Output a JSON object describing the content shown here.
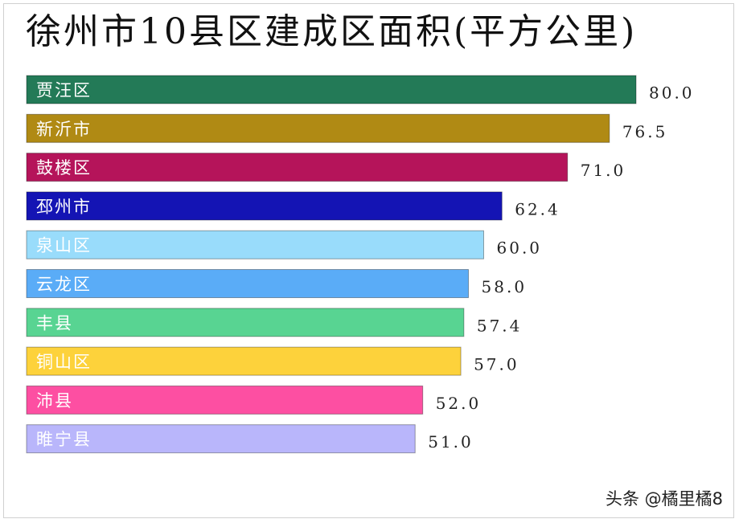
{
  "title": "徐州市10县区建成区面积(平方公里)",
  "watermark": "头条 @橘里橘8",
  "chart_data": {
    "type": "bar",
    "orientation": "horizontal",
    "title": "徐州市10县区建成区面积(平方公里)",
    "categories": [
      "贾汪区",
      "新沂市",
      "鼓楼区",
      "邳州市",
      "泉山区",
      "云龙区",
      "丰县",
      "铜山区",
      "沛县",
      "睢宁县"
    ],
    "values": [
      80.0,
      76.5,
      71.0,
      62.4,
      60.0,
      58.0,
      57.4,
      57.0,
      52.0,
      51.0
    ],
    "value_labels": [
      "80.0",
      "76.5",
      "71.0",
      "62.4",
      "60.0",
      "58.0",
      "57.4",
      "57.0",
      "52.0",
      "51.0"
    ],
    "colors": [
      "#237a57",
      "#b08a14",
      "#b5145a",
      "#1414b4",
      "#99dcfb",
      "#5aacf7",
      "#58d492",
      "#fdd23b",
      "#fd4fa2",
      "#b9b6fb"
    ],
    "xlim": [
      0,
      80
    ],
    "grid": false,
    "legend": false
  }
}
